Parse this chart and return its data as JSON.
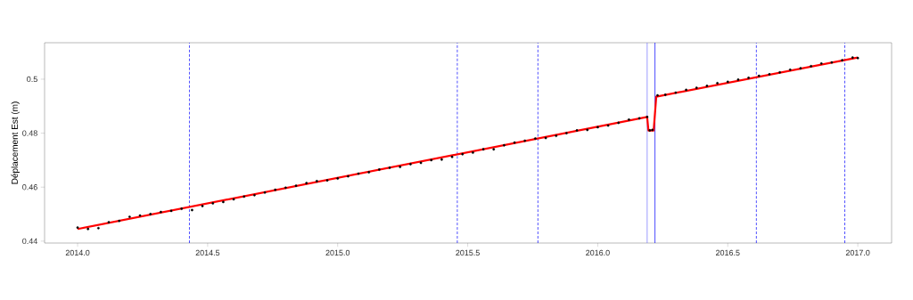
{
  "chart_data": {
    "type": "scatter",
    "ylabel": "Déplacement Est (m)",
    "xlim": [
      2013.873,
      2017.13
    ],
    "ylim": [
      0.4393,
      0.5135
    ],
    "xticks": [
      {
        "value": 2014.0,
        "label": "2014.0"
      },
      {
        "value": 2014.5,
        "label": "2014.5"
      },
      {
        "value": 2015.0,
        "label": "2015.0"
      },
      {
        "value": 2015.5,
        "label": "2015.5"
      },
      {
        "value": 2016.0,
        "label": "2016.0"
      },
      {
        "value": 2016.5,
        "label": "2016.5"
      },
      {
        "value": 2017.0,
        "label": "2017.0"
      }
    ],
    "yticks": [
      0.44,
      0.46,
      0.48,
      0.5
    ],
    "ref_lines": [
      {
        "axis": "x",
        "value": 2014.43,
        "color": "#0000ff",
        "line_style": "dashed"
      },
      {
        "axis": "x",
        "value": 2015.46,
        "color": "#0000ff",
        "line_style": "dashed"
      },
      {
        "axis": "x",
        "value": 2015.77,
        "color": "#0000ff",
        "line_style": "dashed"
      },
      {
        "axis": "x",
        "value": 2016.19,
        "color": "#7070ff",
        "line_style": "solid"
      },
      {
        "axis": "x",
        "value": 2016.22,
        "color": "#0000ff",
        "line_style": "solid"
      },
      {
        "axis": "x",
        "value": 2016.61,
        "color": "#0000ff",
        "line_style": "dashed"
      },
      {
        "axis": "x",
        "value": 2016.95,
        "color": "#0000ff",
        "line_style": "dashed"
      }
    ],
    "series": [
      {
        "color": "#000000",
        "marker": "circle",
        "x": [
          2014.0,
          2014.04,
          2014.08,
          2014.12,
          2014.16,
          2014.2,
          2014.24,
          2014.28,
          2014.32,
          2014.36,
          2014.4,
          2014.44,
          2014.48,
          2014.52,
          2014.56,
          2014.6,
          2014.64,
          2014.68,
          2014.72,
          2014.76,
          2014.8,
          2014.84,
          2014.88,
          2014.92,
          2014.96,
          2015.0,
          2015.04,
          2015.08,
          2015.12,
          2015.16,
          2015.2,
          2015.24,
          2015.28,
          2015.32,
          2015.36,
          2015.4,
          2015.44,
          2015.48,
          2015.52,
          2015.56,
          2015.6,
          2015.64,
          2015.68,
          2015.72,
          2015.76,
          2015.8,
          2015.84,
          2015.88,
          2015.92,
          2015.96,
          2016.0,
          2016.04,
          2016.08,
          2016.12,
          2016.16,
          2016.19,
          2016.2,
          2016.21,
          2016.23,
          2016.26,
          2016.3,
          2016.34,
          2016.38,
          2016.42,
          2016.46,
          2016.5,
          2016.54,
          2016.58,
          2016.62,
          2016.66,
          2016.7,
          2016.74,
          2016.78,
          2016.82,
          2016.86,
          2016.9,
          2016.94,
          2016.98,
          2017.0
        ],
        "values": [
          0.445,
          0.4445,
          0.4448,
          0.447,
          0.4475,
          0.449,
          0.4495,
          0.45,
          0.4508,
          0.4512,
          0.452,
          0.4515,
          0.453,
          0.454,
          0.4545,
          0.4555,
          0.4565,
          0.457,
          0.458,
          0.459,
          0.4598,
          0.4605,
          0.4615,
          0.4622,
          0.4625,
          0.4632,
          0.464,
          0.465,
          0.4655,
          0.4665,
          0.4672,
          0.4675,
          0.4685,
          0.469,
          0.47,
          0.4702,
          0.4712,
          0.4722,
          0.4728,
          0.474,
          0.474,
          0.4755,
          0.4765,
          0.4772,
          0.478,
          0.4782,
          0.479,
          0.48,
          0.481,
          0.4812,
          0.4822,
          0.4828,
          0.4838,
          0.485,
          0.4855,
          0.486,
          0.481,
          0.4812,
          0.494,
          0.4942,
          0.495,
          0.496,
          0.4968,
          0.4975,
          0.4985,
          0.499,
          0.4998,
          0.5005,
          0.5012,
          0.5018,
          0.5025,
          0.5035,
          0.504,
          0.5048,
          0.5058,
          0.5062,
          0.507,
          0.508,
          0.5078
        ]
      },
      {
        "type": "line",
        "color": "#ff0000",
        "marker": "none",
        "x": [
          2014.0,
          2016.19,
          2016.195,
          2016.215,
          2016.225,
          2017.0
        ],
        "values": [
          0.4445,
          0.486,
          0.481,
          0.481,
          0.4935,
          0.508
        ]
      }
    ]
  }
}
